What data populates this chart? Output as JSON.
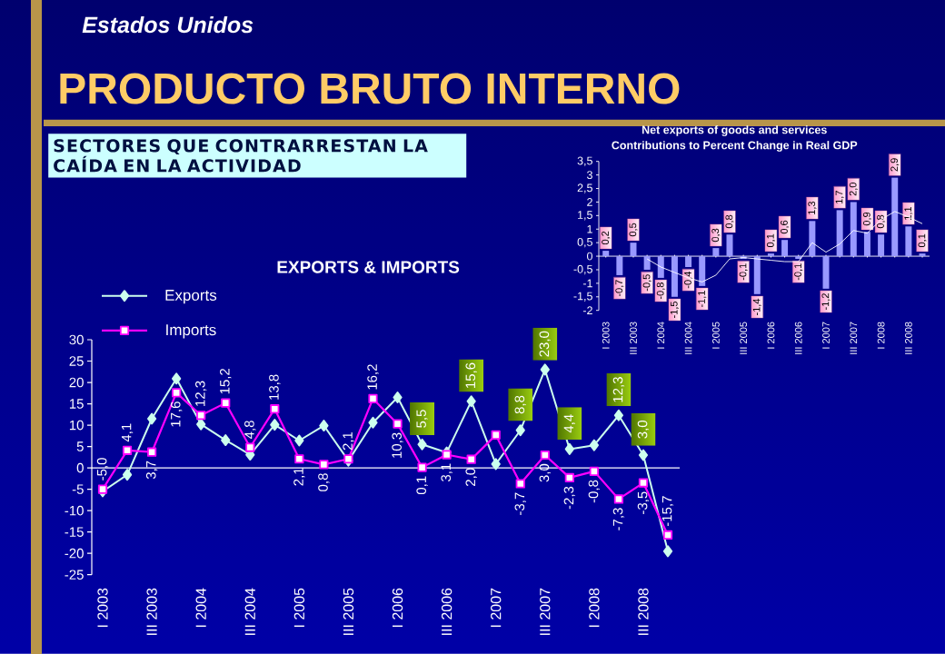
{
  "chart_data": [
    {
      "type": "other",
      "title": "PRODUCTO BRUTO INTERNO",
      "subtitle": "Estados Unidos",
      "annotations": [
        "SECTORES QUE CONTRARRESTAN LA CAÍDA EN LA ACTIVIDAD"
      ]
    },
    {
      "type": "bar",
      "title": "Net exports of goods and services",
      "subtitle": "Contributions to Percent Change in Real GDP",
      "categories": [
        "I 2003",
        null,
        "III 2003",
        null,
        "I 2004",
        null,
        "III 2004",
        null,
        "I 2005",
        null,
        "III 2005",
        null,
        "I 2006",
        null,
        "III 2006",
        null,
        "I 2007",
        null,
        "III 2007",
        null,
        "I 2008",
        null,
        "III 2008",
        null
      ],
      "series": [
        {
          "type": "bar",
          "color": "#9999ff",
          "values": [
            0.2,
            -0.7,
            0.5,
            -0.5,
            -0.8,
            -1.5,
            -0.4,
            -1.1,
            0.3,
            0.8,
            -0.1,
            -1.4,
            0.1,
            0.6,
            -0.1,
            1.3,
            -1.2,
            1.7,
            2.0,
            0.9,
            0.8,
            2.9,
            1.1,
            0.1
          ],
          "value_labels": [
            "0,2",
            "-0,7",
            "0,5",
            "-0,5",
            "-0,8",
            "-1,5",
            "-0,4",
            "-1,1",
            "0,3",
            "0,8",
            "-0,1",
            "-1,4",
            "0,1",
            "0,6",
            "-0,1",
            "1,3",
            "-1,2",
            "1,7",
            "2,0",
            "0,9",
            "0,8",
            "2,9",
            "1,1",
            "0,1"
          ]
        },
        {
          "type": "line",
          "color": "#ffffff",
          "values": [
            null,
            null,
            null,
            -0.1,
            -0.4,
            -0.6,
            -0.8,
            -0.95,
            -0.7,
            -0.1,
            -0.05,
            -0.1,
            -0.15,
            -0.2,
            -0.2,
            0.5,
            0.15,
            0.45,
            0.95,
            0.85,
            1.35,
            1.65,
            1.45,
            1.2
          ]
        }
      ],
      "ylim": [
        -2,
        3.5
      ],
      "yticks": [
        -2,
        {
          "value": -1.5,
          "label": "-1,5"
        },
        -1,
        {
          "value": -0.5,
          "label": "-0,5"
        },
        0,
        {
          "value": 0.5,
          "label": "0,5"
        },
        1,
        {
          "value": 1.5,
          "label": "1,5"
        },
        2,
        {
          "value": 2.5,
          "label": "2,5"
        },
        3,
        {
          "value": 3.5,
          "label": "3,5"
        }
      ]
    },
    {
      "type": "line",
      "title": "EXPORTS & IMPORTS",
      "categories": [
        "I 2003",
        null,
        "III 2003",
        null,
        "I 2004",
        null,
        "III 2004",
        null,
        "I 2005",
        null,
        "III 2005",
        null,
        "I 2006",
        null,
        "III 2006",
        null,
        "I 2007",
        null,
        "III 2007",
        null,
        "I 2008",
        null,
        "III 2008",
        null
      ],
      "series": [
        {
          "name": "Exports",
          "color": "#ccffee",
          "marker": "diamond",
          "values": [
            -5.5,
            -1.6,
            11.5,
            20.9,
            10.2,
            6.5,
            3.1,
            10.1,
            6.4,
            9.9,
            1.7,
            10.6,
            16.5,
            5.5,
            3.6,
            15.6,
            0.9,
            8.8,
            23.0,
            4.4,
            5.3,
            12.3,
            3.0,
            -19.5
          ],
          "value_labels": [
            null,
            null,
            null,
            null,
            null,
            null,
            null,
            null,
            null,
            null,
            null,
            null,
            null,
            "5,5",
            null,
            "15,6",
            null,
            "8,8",
            "23,0",
            "4,4",
            null,
            "12,3",
            "3,0",
            null
          ]
        },
        {
          "name": "Imports",
          "color": "#ff00ff",
          "marker": "square",
          "values": [
            -5.0,
            4.1,
            3.7,
            17.6,
            12.3,
            15.2,
            4.8,
            13.8,
            2.1,
            0.8,
            2.1,
            16.2,
            10.3,
            0.1,
            3.1,
            2.0,
            7.7,
            -3.7,
            3.0,
            -2.3,
            -0.8,
            -7.3,
            -3.5,
            -15.7
          ],
          "value_labels": [
            "-5,0",
            "4,1",
            "3,7",
            "17,6",
            "12,3",
            "15,2",
            "4,8",
            "13,8",
            "2,1",
            "0,8",
            "2,1",
            "16,2",
            "10,3",
            "0,1",
            "3,1",
            "2,0",
            null,
            "-3,7",
            "3,0",
            "-2,3",
            "-0,8",
            "-7,3",
            "-3,5",
            "-15,7"
          ]
        }
      ],
      "ylim": [
        -25,
        30
      ],
      "yticks": [
        -25,
        -20,
        -15,
        -10,
        -5,
        0,
        5,
        10,
        15,
        20,
        25,
        30
      ],
      "legend": "top left"
    }
  ]
}
